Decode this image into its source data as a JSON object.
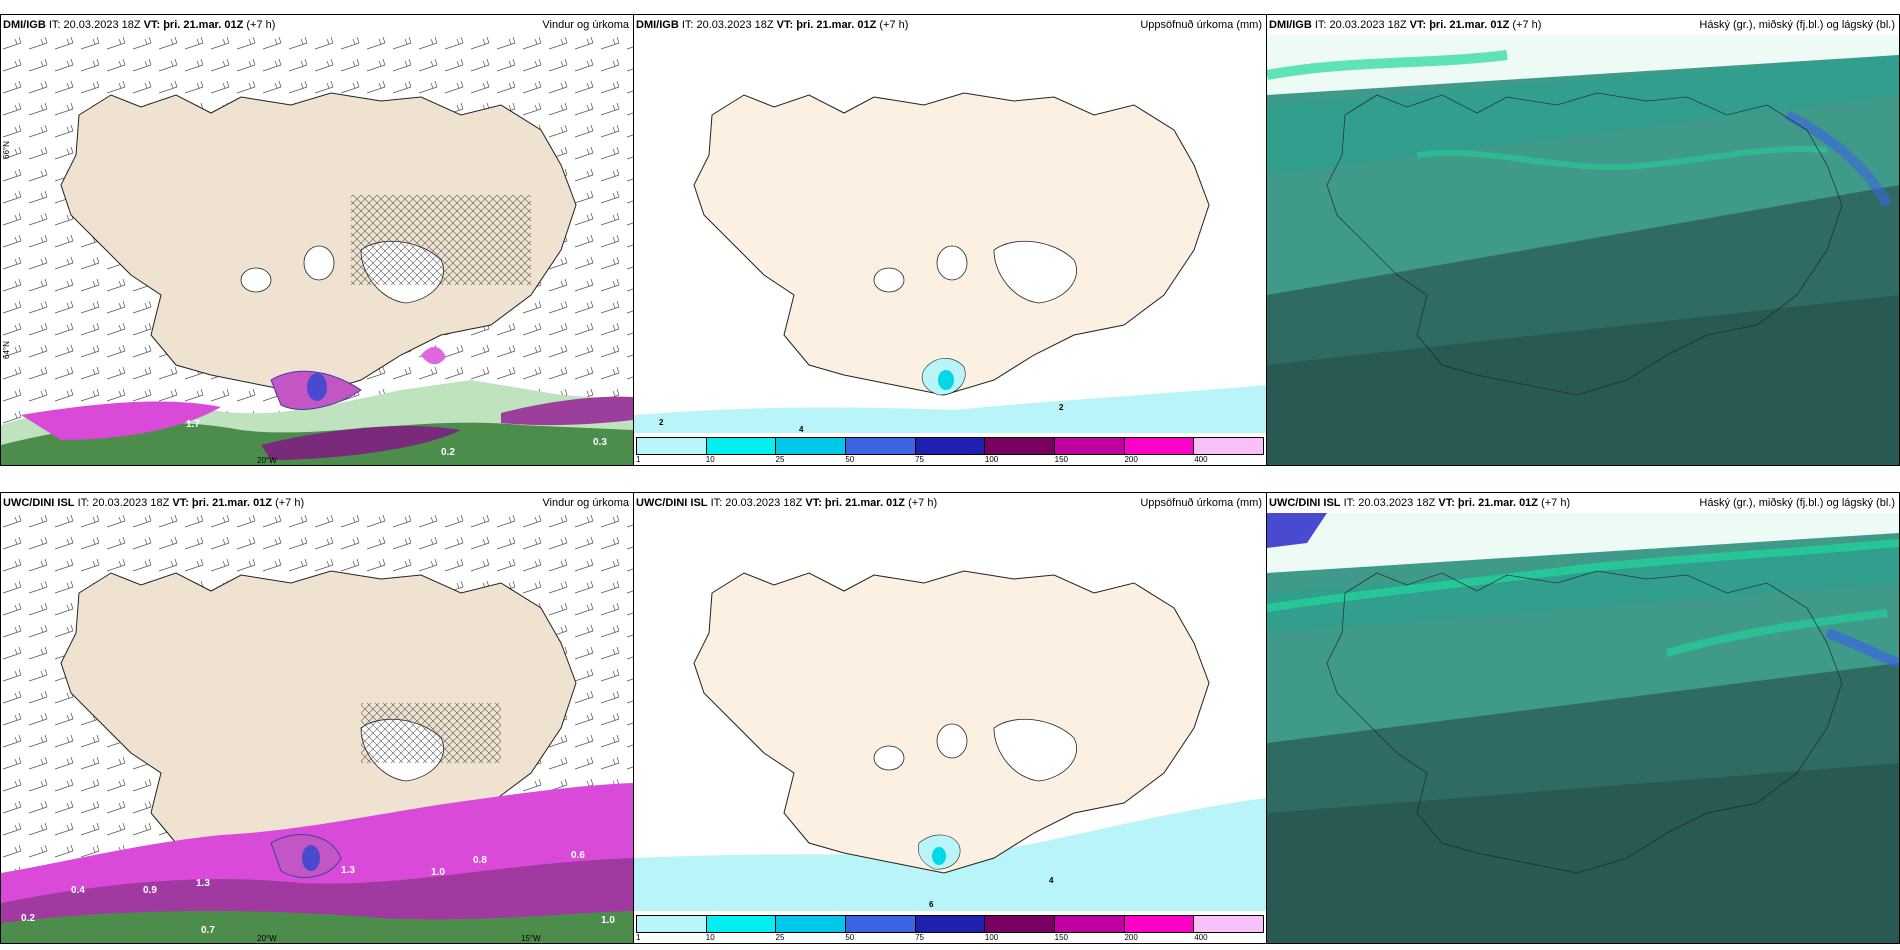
{
  "panels": {
    "p1": {
      "source": "DMI/IGB",
      "it": "IT: 20.03.2023 18Z",
      "vt_label": "VT:",
      "vt": "þri. 21.mar. 01Z",
      "step": "(+7 h)",
      "title": "Vindur og úrkoma"
    },
    "p2": {
      "source": "DMI/IGB",
      "it": "IT: 20.03.2023 18Z",
      "vt_label": "VT:",
      "vt": "þri. 21.mar. 01Z",
      "step": "(+7 h)",
      "title": "Uppsöfnuð úrkoma (mm)"
    },
    "p3": {
      "source": "DMI/IGB",
      "it": "IT: 20.03.2023 18Z",
      "vt_label": "VT:",
      "vt": "þri. 21.mar. 01Z",
      "step": "(+7 h)",
      "title": "Háský (gr.), miðský (fj.bl.) og lágský (bl.)"
    },
    "p4": {
      "source": "UWC/DINI ISL",
      "it": "IT: 20.03.2023 18Z",
      "vt_label": "VT:",
      "vt": "þri. 21.mar. 01Z",
      "step": "(+7 h)",
      "title": "Vindur og úrkoma"
    },
    "p5": {
      "source": "UWC/DINI ISL",
      "it": "IT: 20.03.2023 18Z",
      "vt_label": "VT:",
      "vt": "þri. 21.mar. 01Z",
      "step": "(+7 h)",
      "title": "Uppsöfnuð úrkoma (mm)"
    },
    "p6": {
      "source": "UWC/DINI ISL",
      "it": "IT: 20.03.2023 18Z",
      "vt_label": "VT:",
      "vt": "þri. 21.mar. 01Z",
      "step": "(+7 h)",
      "title": "Háský (gr.), miðský (fj.bl.) og lágský (bl.)"
    }
  },
  "legend": {
    "ticks": [
      "1",
      "10",
      "25",
      "50",
      "75",
      "100",
      "150",
      "200",
      "400"
    ],
    "colors": [
      "#b8f4f8",
      "#00f0f0",
      "#00c8e8",
      "#3c64e0",
      "#2020b0",
      "#780060",
      "#c000a0",
      "#ff00c8",
      "#f8c0f8"
    ]
  },
  "map_labels": {
    "p1_lat_top": "66°N",
    "p1_lat_mid": "64°N",
    "p1_lon": "20°W",
    "p1_values": [
      "1.7",
      "0.2",
      "0.3"
    ],
    "p2_values": [
      "2",
      "4",
      "2"
    ],
    "p4_values": [
      "0.4",
      "0.9",
      "1.3",
      "1.3",
      "0.2",
      "0.7",
      "1.0",
      "0.8",
      "0.6",
      "1.0"
    ],
    "p4_lon_a": "20°W",
    "p4_lon_b": "15°W",
    "p5_values": [
      "4",
      "6"
    ]
  },
  "colors": {
    "land": "#efe2d0",
    "land_sheet": "#fbf0e2",
    "ice": "#ffffff",
    "cloud_low": "#2f6b62",
    "cloud_mid": "#3f9a8a",
    "cloud_high": "#29d8a0"
  }
}
